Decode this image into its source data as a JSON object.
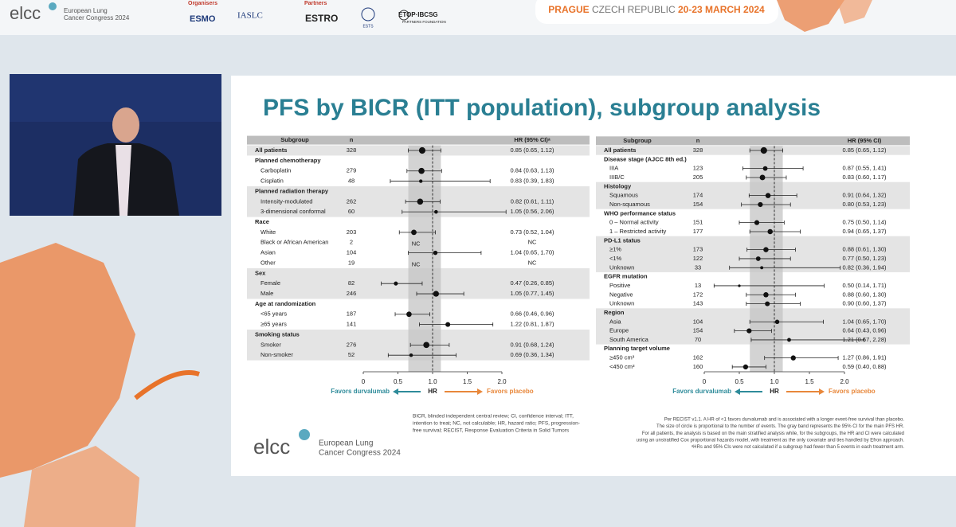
{
  "header": {
    "logo": "elcc",
    "congress_lines": [
      "European Lung",
      "Cancer Congress 2024"
    ],
    "organisers_label": "Organisers",
    "organisers": [
      "ESMO",
      "IASLC"
    ],
    "partners_label": "Partners",
    "partners": [
      "ESTRO",
      "ESTS",
      "ETOP·IBCSG"
    ],
    "partner_sub": "PARTNERS FOUNDATION",
    "venue": [
      "PRAGUE",
      "CZECH REPUBLIC",
      "20-23 MARCH 2024"
    ]
  },
  "slide": {
    "title": "PFS by BICR (ITT population), subgroup analysis",
    "footer_logo": "elcc",
    "footer_congress_lines": [
      "European Lung",
      "Cancer Congress 2024"
    ],
    "abbreviations": [
      "BICR, blinded independent central review; CI, confidence interval; ITT,",
      "intention to treat; NC, not calculable; HR, hazard ratio; PFS, progression-",
      "free survival; RECIST, Response Evaluation Criteria in Solid Tumors"
    ],
    "notes": [
      "Per RECIST v1.1. A HR of <1 favors durvalumab and is associated with a longer event-free survival than placebo.",
      "The size of circle is proportional to the number of events. The gray band represents the 95% CI for the main PFS HR.",
      "For all patients, the analysis is based on the main stratified analysis while, for the subgroups, the HR and CI were calculated",
      "using an unstratified Cox proportional hazards model, with treatment as the only covariate and ties handled by Efron approach.",
      "ᵃHRs and 95% CIs were not calculated if a subgroup had fewer than 5 events in each treatment arm."
    ]
  },
  "chart_data": [
    {
      "type": "forest",
      "columns": [
        "Subgroup",
        "n",
        "HR (95% CI)ᵃ"
      ],
      "overall": {
        "name": "All patients",
        "n": 328,
        "hr": 0.85,
        "ci": [
          0.65,
          1.12
        ],
        "value_label": "0.85 (0.65, 1.12)"
      },
      "groups": [
        {
          "name": "Planned chemotherapy",
          "rows": [
            {
              "name": "Carboplatin",
              "n": 279,
              "hr": 0.84,
              "ci": [
                0.63,
                1.13
              ],
              "value_label": "0.84 (0.63, 1.13)"
            },
            {
              "name": "Cisplatin",
              "n": 48,
              "hr": 0.83,
              "ci": [
                0.39,
                1.83
              ],
              "value_label": "0.83 (0.39, 1.83)"
            }
          ]
        },
        {
          "name": "Planned radiation therapy",
          "rows": [
            {
              "name": "Intensity-modulated",
              "n": 262,
              "hr": 0.82,
              "ci": [
                0.61,
                1.11
              ],
              "value_label": "0.82 (0.61, 1.11)"
            },
            {
              "name": "3-dimensional conformal",
              "n": 60,
              "hr": 1.05,
              "ci": [
                0.56,
                2.06
              ],
              "value_label": "1.05 (0.56, 2.06)"
            }
          ]
        },
        {
          "name": "Race",
          "rows": [
            {
              "name": "White",
              "n": 203,
              "hr": 0.73,
              "ci": [
                0.52,
                1.04
              ],
              "value_label": "0.73 (0.52, 1.04)"
            },
            {
              "name": "Black or African American",
              "n": 2,
              "hr": null,
              "ci": null,
              "value_label": "NC"
            },
            {
              "name": "Asian",
              "n": 104,
              "hr": 1.04,
              "ci": [
                0.65,
                1.7
              ],
              "value_label": "1.04 (0.65, 1.70)"
            },
            {
              "name": "Other",
              "n": 19,
              "hr": null,
              "ci": null,
              "value_label": "NC"
            }
          ]
        },
        {
          "name": "Sex",
          "rows": [
            {
              "name": "Female",
              "n": 82,
              "hr": 0.47,
              "ci": [
                0.26,
                0.85
              ],
              "value_label": "0.47 (0.26, 0.85)"
            },
            {
              "name": "Male",
              "n": 246,
              "hr": 1.05,
              "ci": [
                0.77,
                1.45
              ],
              "value_label": "1.05 (0.77, 1.45)"
            }
          ]
        },
        {
          "name": "Age at randomization",
          "rows": [
            {
              "name": "<65 years",
              "n": 187,
              "hr": 0.66,
              "ci": [
                0.46,
                0.96
              ],
              "value_label": "0.66 (0.46, 0.96)"
            },
            {
              "name": "≥65 years",
              "n": 141,
              "hr": 1.22,
              "ci": [
                0.81,
                1.87
              ],
              "value_label": "1.22 (0.81, 1.87)"
            }
          ]
        },
        {
          "name": "Smoking status",
          "rows": [
            {
              "name": "Smoker",
              "n": 276,
              "hr": 0.91,
              "ci": [
                0.68,
                1.24
              ],
              "value_label": "0.91 (0.68, 1.24)"
            },
            {
              "name": "Non-smoker",
              "n": 52,
              "hr": 0.69,
              "ci": [
                0.36,
                1.34
              ],
              "value_label": "0.69 (0.36, 1.34)"
            }
          ]
        }
      ],
      "xlim": [
        0,
        2.0
      ],
      "xticks": [
        0,
        0.5,
        {
          "value": 1,
          "label": "1.0"
        },
        1.5,
        {
          "value": 2,
          "label": "2.0"
        }
      ],
      "xlabel": "HR",
      "left_label": "Favors durvalumab",
      "right_label": "Favors placebo",
      "left_color": "#2e8b9a",
      "right_color": "#e8873a",
      "band_color": "#c4c4c4"
    },
    {
      "type": "forest",
      "columns": [
        "Subgroup",
        "n",
        "HR (95% CI)"
      ],
      "overall": {
        "name": "All patients",
        "n": 328,
        "hr": 0.85,
        "ci": [
          0.65,
          1.12
        ],
        "value_label": "0.85 (0.65, 1.12)"
      },
      "groups": [
        {
          "name": "Disease stage (AJCC 8th ed.)",
          "rows": [
            {
              "name": "IIIA",
              "n": 123,
              "hr": 0.87,
              "ci": [
                0.55,
                1.41
              ],
              "value_label": "0.87 (0.55, 1.41)"
            },
            {
              "name": "IIIB/C",
              "n": 205,
              "hr": 0.83,
              "ci": [
                0.6,
                1.17
              ],
              "value_label": "0.83 (0.60, 1.17)"
            }
          ]
        },
        {
          "name": "Histology",
          "rows": [
            {
              "name": "Squamous",
              "n": 174,
              "hr": 0.91,
              "ci": [
                0.64,
                1.32
              ],
              "value_label": "0.91 (0.64, 1.32)"
            },
            {
              "name": "Non-squamous",
              "n": 154,
              "hr": 0.8,
              "ci": [
                0.53,
                1.23
              ],
              "value_label": "0.80 (0.53, 1.23)"
            }
          ]
        },
        {
          "name": "WHO performance status",
          "rows": [
            {
              "name": "0 – Normal activity",
              "n": 151,
              "hr": 0.75,
              "ci": [
                0.5,
                1.14
              ],
              "value_label": "0.75 (0.50, 1.14)"
            },
            {
              "name": "1 – Restricted activity",
              "n": 177,
              "hr": 0.94,
              "ci": [
                0.65,
                1.37
              ],
              "value_label": "0.94 (0.65, 1.37)"
            }
          ]
        },
        {
          "name": "PD-L1 status",
          "rows": [
            {
              "name": "≥1%",
              "n": 173,
              "hr": 0.88,
              "ci": [
                0.61,
                1.3
              ],
              "value_label": "0.88 (0.61, 1.30)"
            },
            {
              "name": "<1%",
              "n": 122,
              "hr": 0.77,
              "ci": [
                0.5,
                1.23
              ],
              "value_label": "0.77 (0.50, 1.23)"
            },
            {
              "name": "Unknown",
              "n": 33,
              "hr": 0.82,
              "ci": [
                0.36,
                1.94
              ],
              "value_label": "0.82 (0.36, 1.94)"
            }
          ]
        },
        {
          "name": "EGFR mutation",
          "rows": [
            {
              "name": "Positive",
              "n": 13,
              "hr": 0.5,
              "ci": [
                0.14,
                1.71
              ],
              "value_label": "0.50 (0.14, 1.71)"
            },
            {
              "name": "Negative",
              "n": 172,
              "hr": 0.88,
              "ci": [
                0.6,
                1.3
              ],
              "value_label": "0.88 (0.60, 1.30)"
            },
            {
              "name": "Unknown",
              "n": 143,
              "hr": 0.9,
              "ci": [
                0.6,
                1.37
              ],
              "value_label": "0.90 (0.60, 1.37)"
            }
          ]
        },
        {
          "name": "Region",
          "rows": [
            {
              "name": "Asia",
              "n": 104,
              "hr": 1.04,
              "ci": [
                0.65,
                1.7
              ],
              "value_label": "1.04 (0.65, 1.70)"
            },
            {
              "name": "Europe",
              "n": 154,
              "hr": 0.64,
              "ci": [
                0.43,
                0.96
              ],
              "value_label": "0.64 (0.43, 0.96)"
            },
            {
              "name": "South America",
              "n": 70,
              "hr": 1.21,
              "ci": [
                0.67,
                2.28
              ],
              "value_label": "1.21 (0.67, 2.28)"
            }
          ]
        },
        {
          "name": "Planning target volume",
          "rows": [
            {
              "name": "≥450 cm³",
              "n": 162,
              "hr": 1.27,
              "ci": [
                0.86,
                1.91
              ],
              "value_label": "1.27 (0.86, 1.91)"
            },
            {
              "name": "<450 cm³",
              "n": 160,
              "hr": 0.59,
              "ci": [
                0.4,
                0.88
              ],
              "value_label": "0.59 (0.40, 0.88)"
            }
          ]
        }
      ],
      "xlim": [
        0,
        2.0
      ],
      "xticks": [
        0,
        0.5,
        {
          "value": 1,
          "label": "1.0"
        },
        1.5,
        {
          "value": 2,
          "label": "2.0"
        }
      ],
      "xlabel": "HR",
      "left_label": "Favors durvalumab",
      "right_label": "Favors placebo",
      "left_color": "#2e8b9a",
      "right_color": "#e8873a",
      "band_color": "#c4c4c4"
    }
  ]
}
